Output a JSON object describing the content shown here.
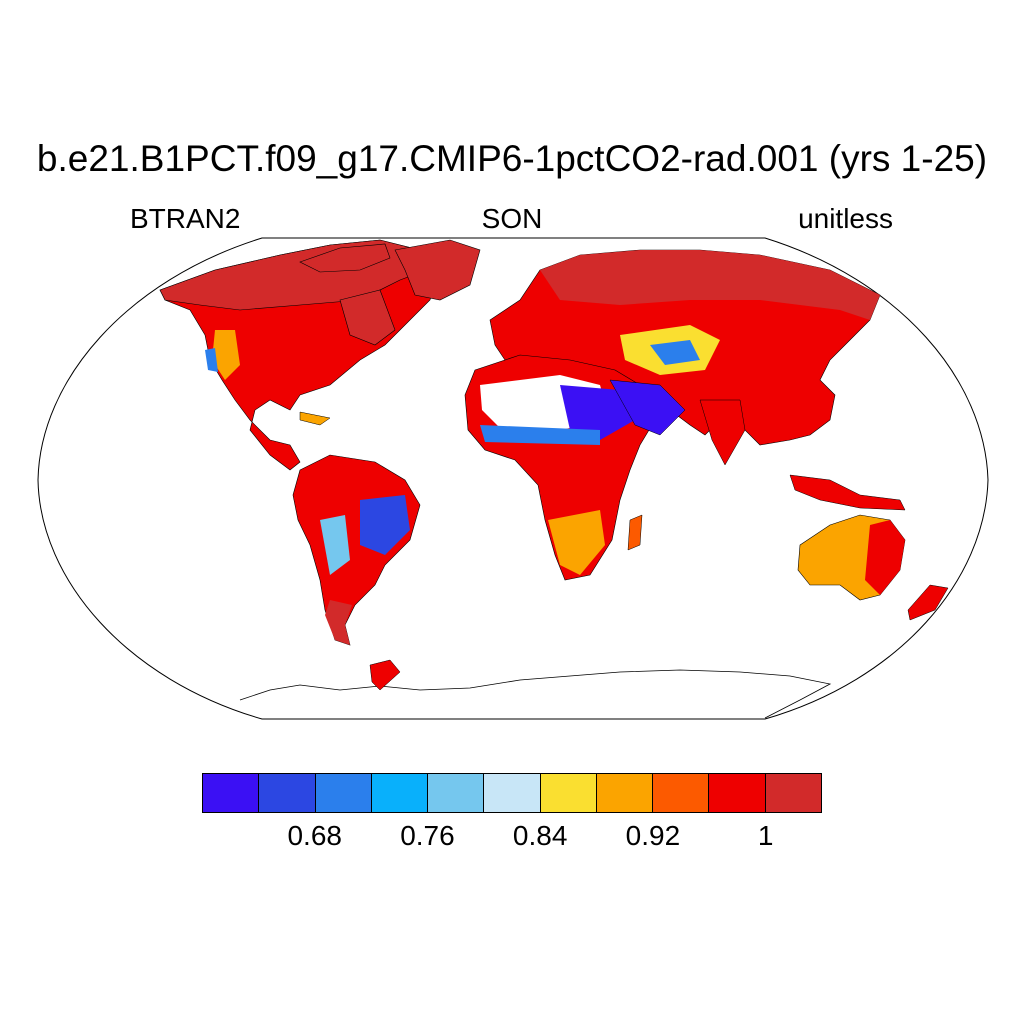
{
  "header": {
    "title": "b.e21.B1PCT.f09_g17.CMIP6-1pctCO2-rad.001 (yrs 1-25)",
    "variable": "BTRAN2",
    "season": "SON",
    "units": "unitless"
  },
  "colorbar": {
    "colors": [
      "#3b10f4",
      "#2c47e2",
      "#2b7fec",
      "#09b0fb",
      "#75c7ee",
      "#c8e6f7",
      "#fadf30",
      "#fba400",
      "#fc5a00",
      "#ee0000",
      "#d22a2a"
    ],
    "labels": [
      {
        "text": "0.68",
        "boundary": 2
      },
      {
        "text": "0.76",
        "boundary": 4
      },
      {
        "text": "0.84",
        "boundary": 6
      },
      {
        "text": "0.92",
        "boundary": 8
      },
      {
        "text": "1",
        "boundary": 10
      }
    ]
  },
  "map": {
    "projection": "robinson",
    "field": "BTRAN2 soil water stress, SON mean",
    "land_fill_dominant": "#ee0000",
    "high_latitude_fill": "#d22a2a",
    "antarctica": "no data (outline only)"
  }
}
